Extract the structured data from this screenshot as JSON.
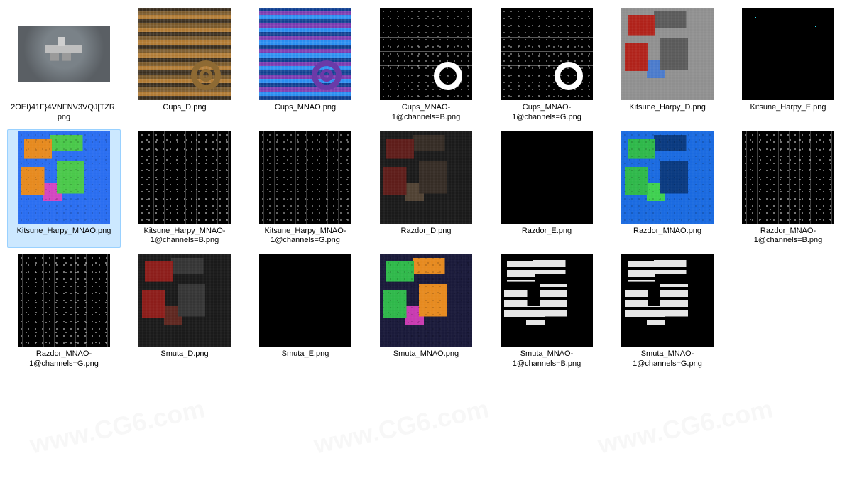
{
  "grid_columns": 7,
  "selection_bg": "#cce8ff",
  "selection_border": "#99d1ff",
  "watermark_text": "www.CG6.com",
  "files": [
    {
      "label": "2OEI)41F}4VNFNV3VQJ[TZR.png",
      "type": "render",
      "selected": false,
      "short": true,
      "bg": "#5a5f64",
      "accent1": "#d8d8d8",
      "accent2": "#9aa0a6"
    },
    {
      "label": "Cups_D.png",
      "type": "diffuse-stripes",
      "selected": false,
      "bg": "#b07a34",
      "c1": "#3a2e1e",
      "c2": "#b07a34",
      "c3": "#7a5a2c",
      "ring": "#8e6a33"
    },
    {
      "label": "Cups_MNAO.png",
      "type": "mnao-stripes",
      "selected": false,
      "bg": "#1a6ae0",
      "c1": "#0f3f90",
      "c2": "#2a8ef0",
      "c3": "#7a3ab0",
      "ring": "#6a3aa8"
    },
    {
      "label": "Cups_MNAO-1@channels=B.png",
      "type": "channel-bw",
      "selected": false,
      "bg": "#000000",
      "dots": "#ffffff",
      "ring": "#ffffff"
    },
    {
      "label": "Cups_MNAO-1@channels=G.png",
      "type": "channel-bw",
      "selected": false,
      "bg": "#000000",
      "dots": "#ffffff",
      "ring": "#ffffff"
    },
    {
      "label": "Kitsune_Harpy_D.png",
      "type": "diffuse-patches",
      "selected": false,
      "bg": "#8f8f8f",
      "p1": "#b0221a",
      "p2": "#5a5a5a",
      "p3": "#4a7acb"
    },
    {
      "label": "Kitsune_Harpy_E.png",
      "type": "emissive",
      "selected": false,
      "bg": "#000000",
      "glow": "#2fd6e6"
    },
    {
      "label": "Kitsune_Harpy_MNAO.png",
      "type": "mnao-patches",
      "selected": true,
      "bg": "#2a6ef0",
      "p1": "#e68a1f",
      "p2": "#4ac84a",
      "p3": "#d345c1"
    },
    {
      "label": "Kitsune_Harpy_MNAO-1@channels=B.png",
      "type": "channel-bw-noise",
      "selected": false,
      "bg": "#000000",
      "dots": "#ffffff"
    },
    {
      "label": "Kitsune_Harpy_MNAO-1@channels=G.png",
      "type": "channel-bw-noise",
      "selected": false,
      "bg": "#000000",
      "dots": "#dddddd"
    },
    {
      "label": "Razdor_D.png",
      "type": "diffuse-dark",
      "selected": false,
      "bg": "#1a1a1a",
      "p1": "#6a1e1a",
      "p2": "#3a3028",
      "p3": "#5a4a38"
    },
    {
      "label": "Razdor_E.png",
      "type": "emissive-plain",
      "selected": false,
      "bg": "#000000"
    },
    {
      "label": "Razdor_MNAO.png",
      "type": "mnao-patches",
      "selected": false,
      "bg": "#1a6ae0",
      "p1": "#2fb84a",
      "p2": "#0a3a80",
      "p3": "#3fd050"
    },
    {
      "label": "Razdor_MNAO-1@channels=B.png",
      "type": "channel-bw-noise",
      "selected": false,
      "bg": "#000000",
      "dots": "#ffffff"
    },
    {
      "label": "Razdor_MNAO-1@channels=G.png",
      "type": "channel-bw-noise",
      "selected": false,
      "bg": "#000000",
      "dots": "#ffffff"
    },
    {
      "label": "Smuta_D.png",
      "type": "diffuse-dark",
      "selected": false,
      "bg": "#1a1a1a",
      "p1": "#a01e1a",
      "p2": "#3a3a3a",
      "p3": "#6a2a22"
    },
    {
      "label": "Smuta_E.png",
      "type": "emissive-faint",
      "selected": false,
      "bg": "#000000",
      "glow": "#6a1a1a"
    },
    {
      "label": "Smuta_MNAO.png",
      "type": "mnao-patches",
      "selected": false,
      "bg": "#1a1a3a",
      "p1": "#2fb84a",
      "p2": "#e68a1f",
      "p3": "#c83ab0"
    },
    {
      "label": "Smuta_MNAO-1@channels=B.png",
      "type": "channel-bw-blocks",
      "selected": false,
      "bg": "#000000",
      "dots": "#ffffff"
    },
    {
      "label": "Smuta_MNAO-1@channels=G.png",
      "type": "channel-bw-blocks",
      "selected": false,
      "bg": "#000000",
      "dots": "#ffffff"
    }
  ]
}
